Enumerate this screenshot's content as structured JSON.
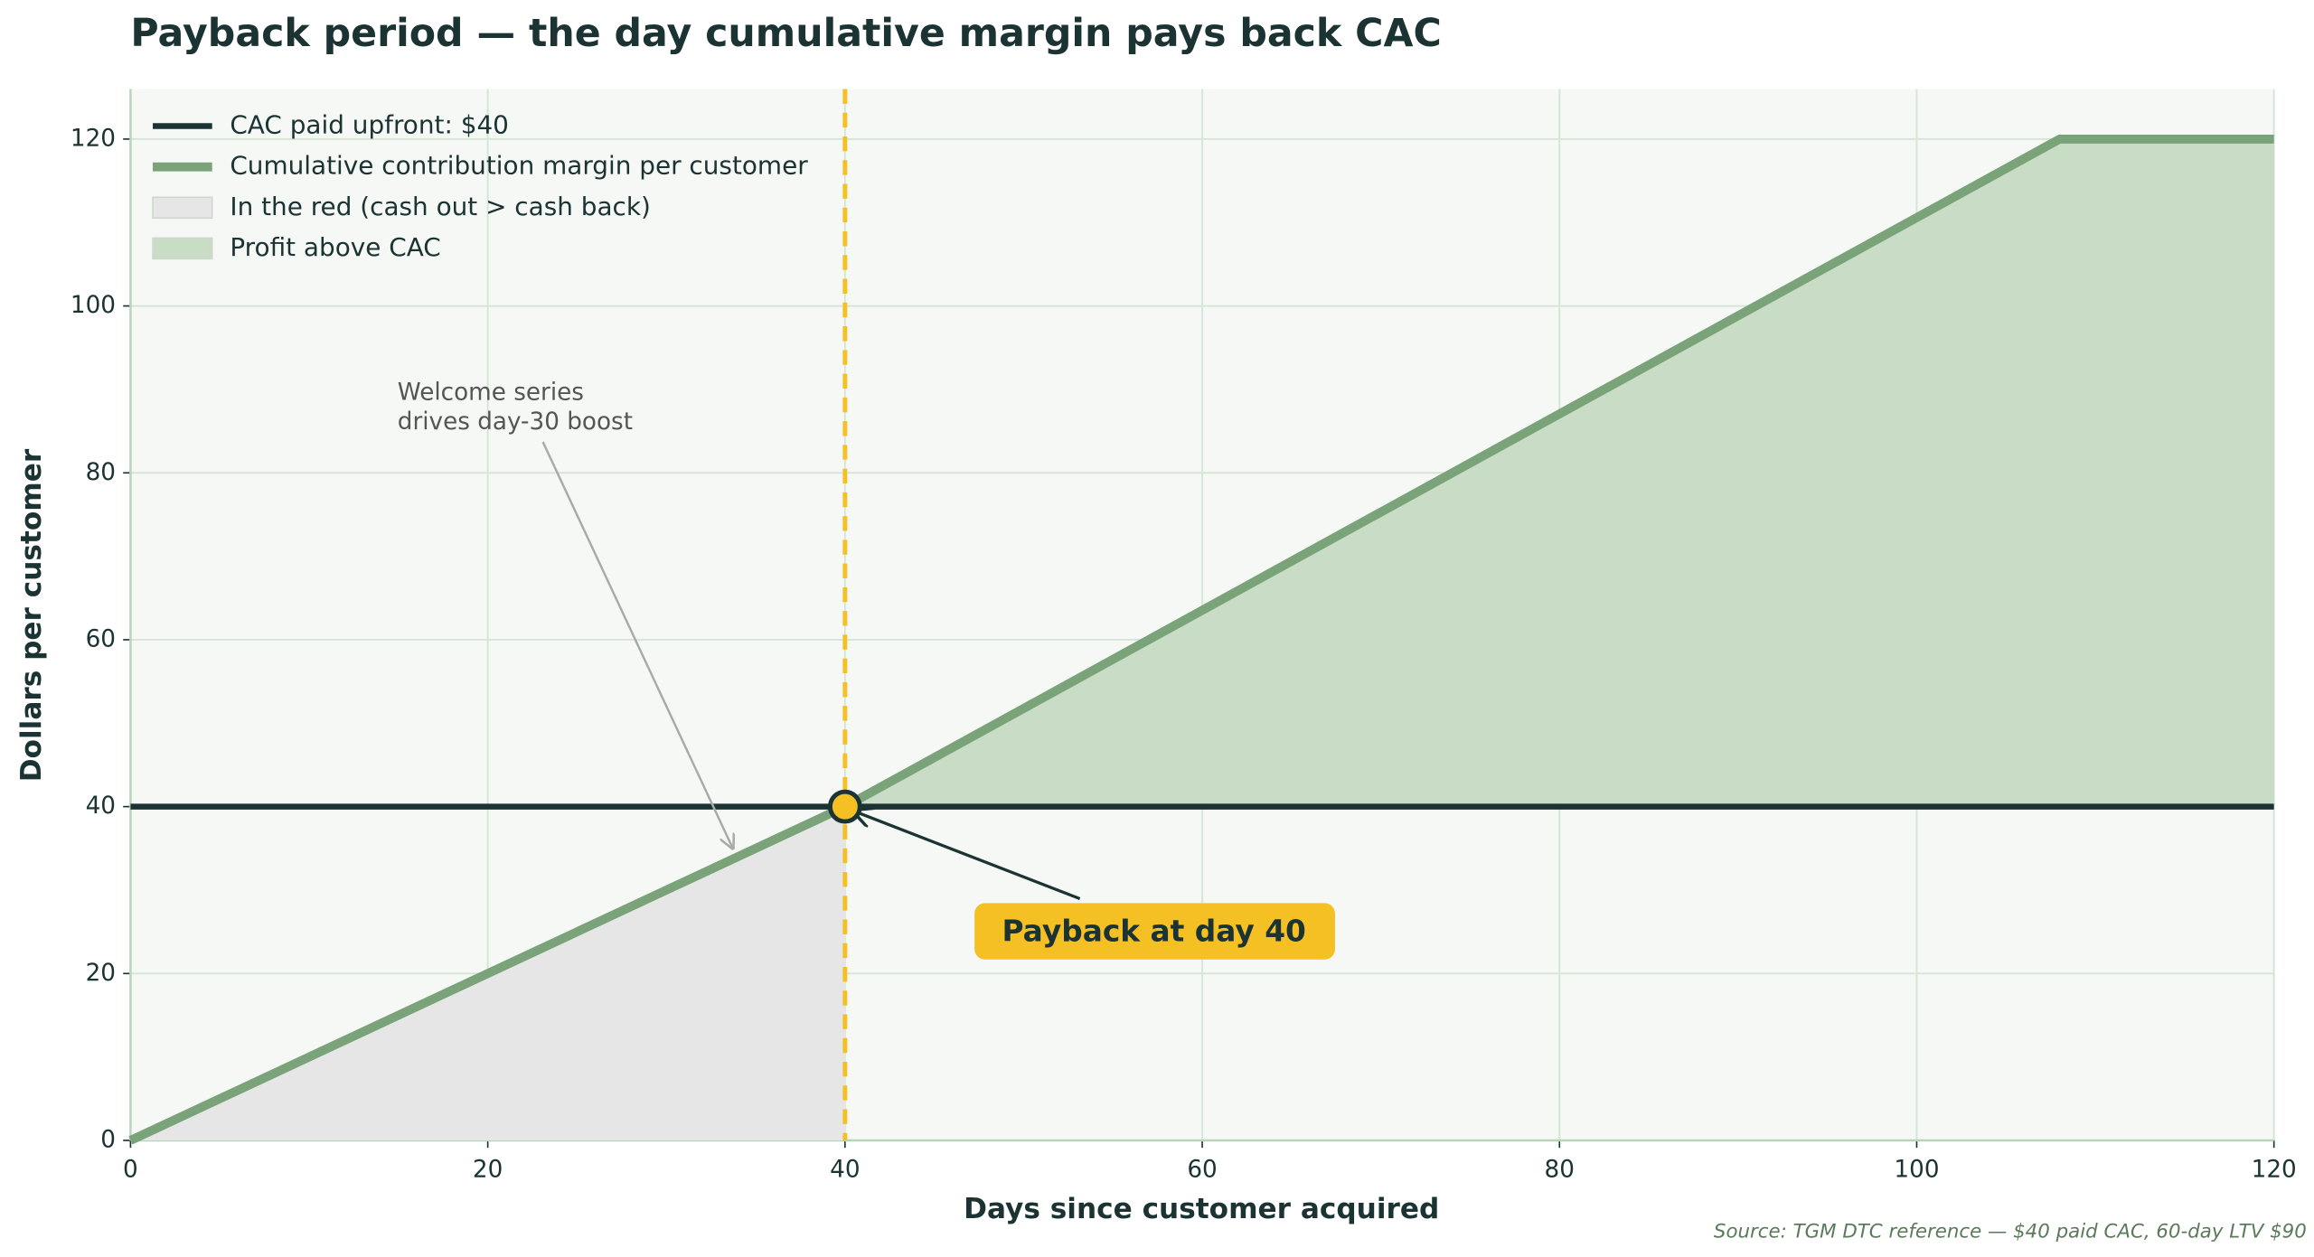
{
  "chart_data": {
    "type": "line",
    "title": "Payback period — the day cumulative margin pays back CAC",
    "x_label": "Days since customer acquired",
    "y_label": "Dollars per customer",
    "x": [
      0,
      30,
      40,
      108,
      120
    ],
    "series": [
      {
        "name": "Cumulative contribution margin per customer",
        "color": "#7aa37a",
        "values": [
          0,
          30,
          40,
          120,
          120
        ]
      }
    ],
    "cac_line": {
      "name": "CAC paid upfront: $40",
      "value": 40,
      "color": "#1b3333"
    },
    "fills": [
      {
        "name": "In the red (cash out > cash back)",
        "color": "#e6e6e6"
      },
      {
        "name": "Profit above CAC",
        "color": "#c9dcc5"
      }
    ],
    "payback": {
      "day": 40,
      "value": 40,
      "label": "Payback at day 40",
      "color": "#f5c024"
    },
    "annotation": [
      "Welcome series",
      "drives day-30 boost"
    ],
    "source": "Source: TGM DTC reference — $40 paid CAC, 60-day LTV $90",
    "xlim": [
      0,
      120
    ],
    "ylim": [
      0,
      126
    ],
    "xticks": [
      0,
      20,
      40,
      60,
      80,
      100,
      120
    ],
    "yticks": [
      0,
      20,
      40,
      60,
      80,
      100,
      120
    ],
    "grid": true
  }
}
